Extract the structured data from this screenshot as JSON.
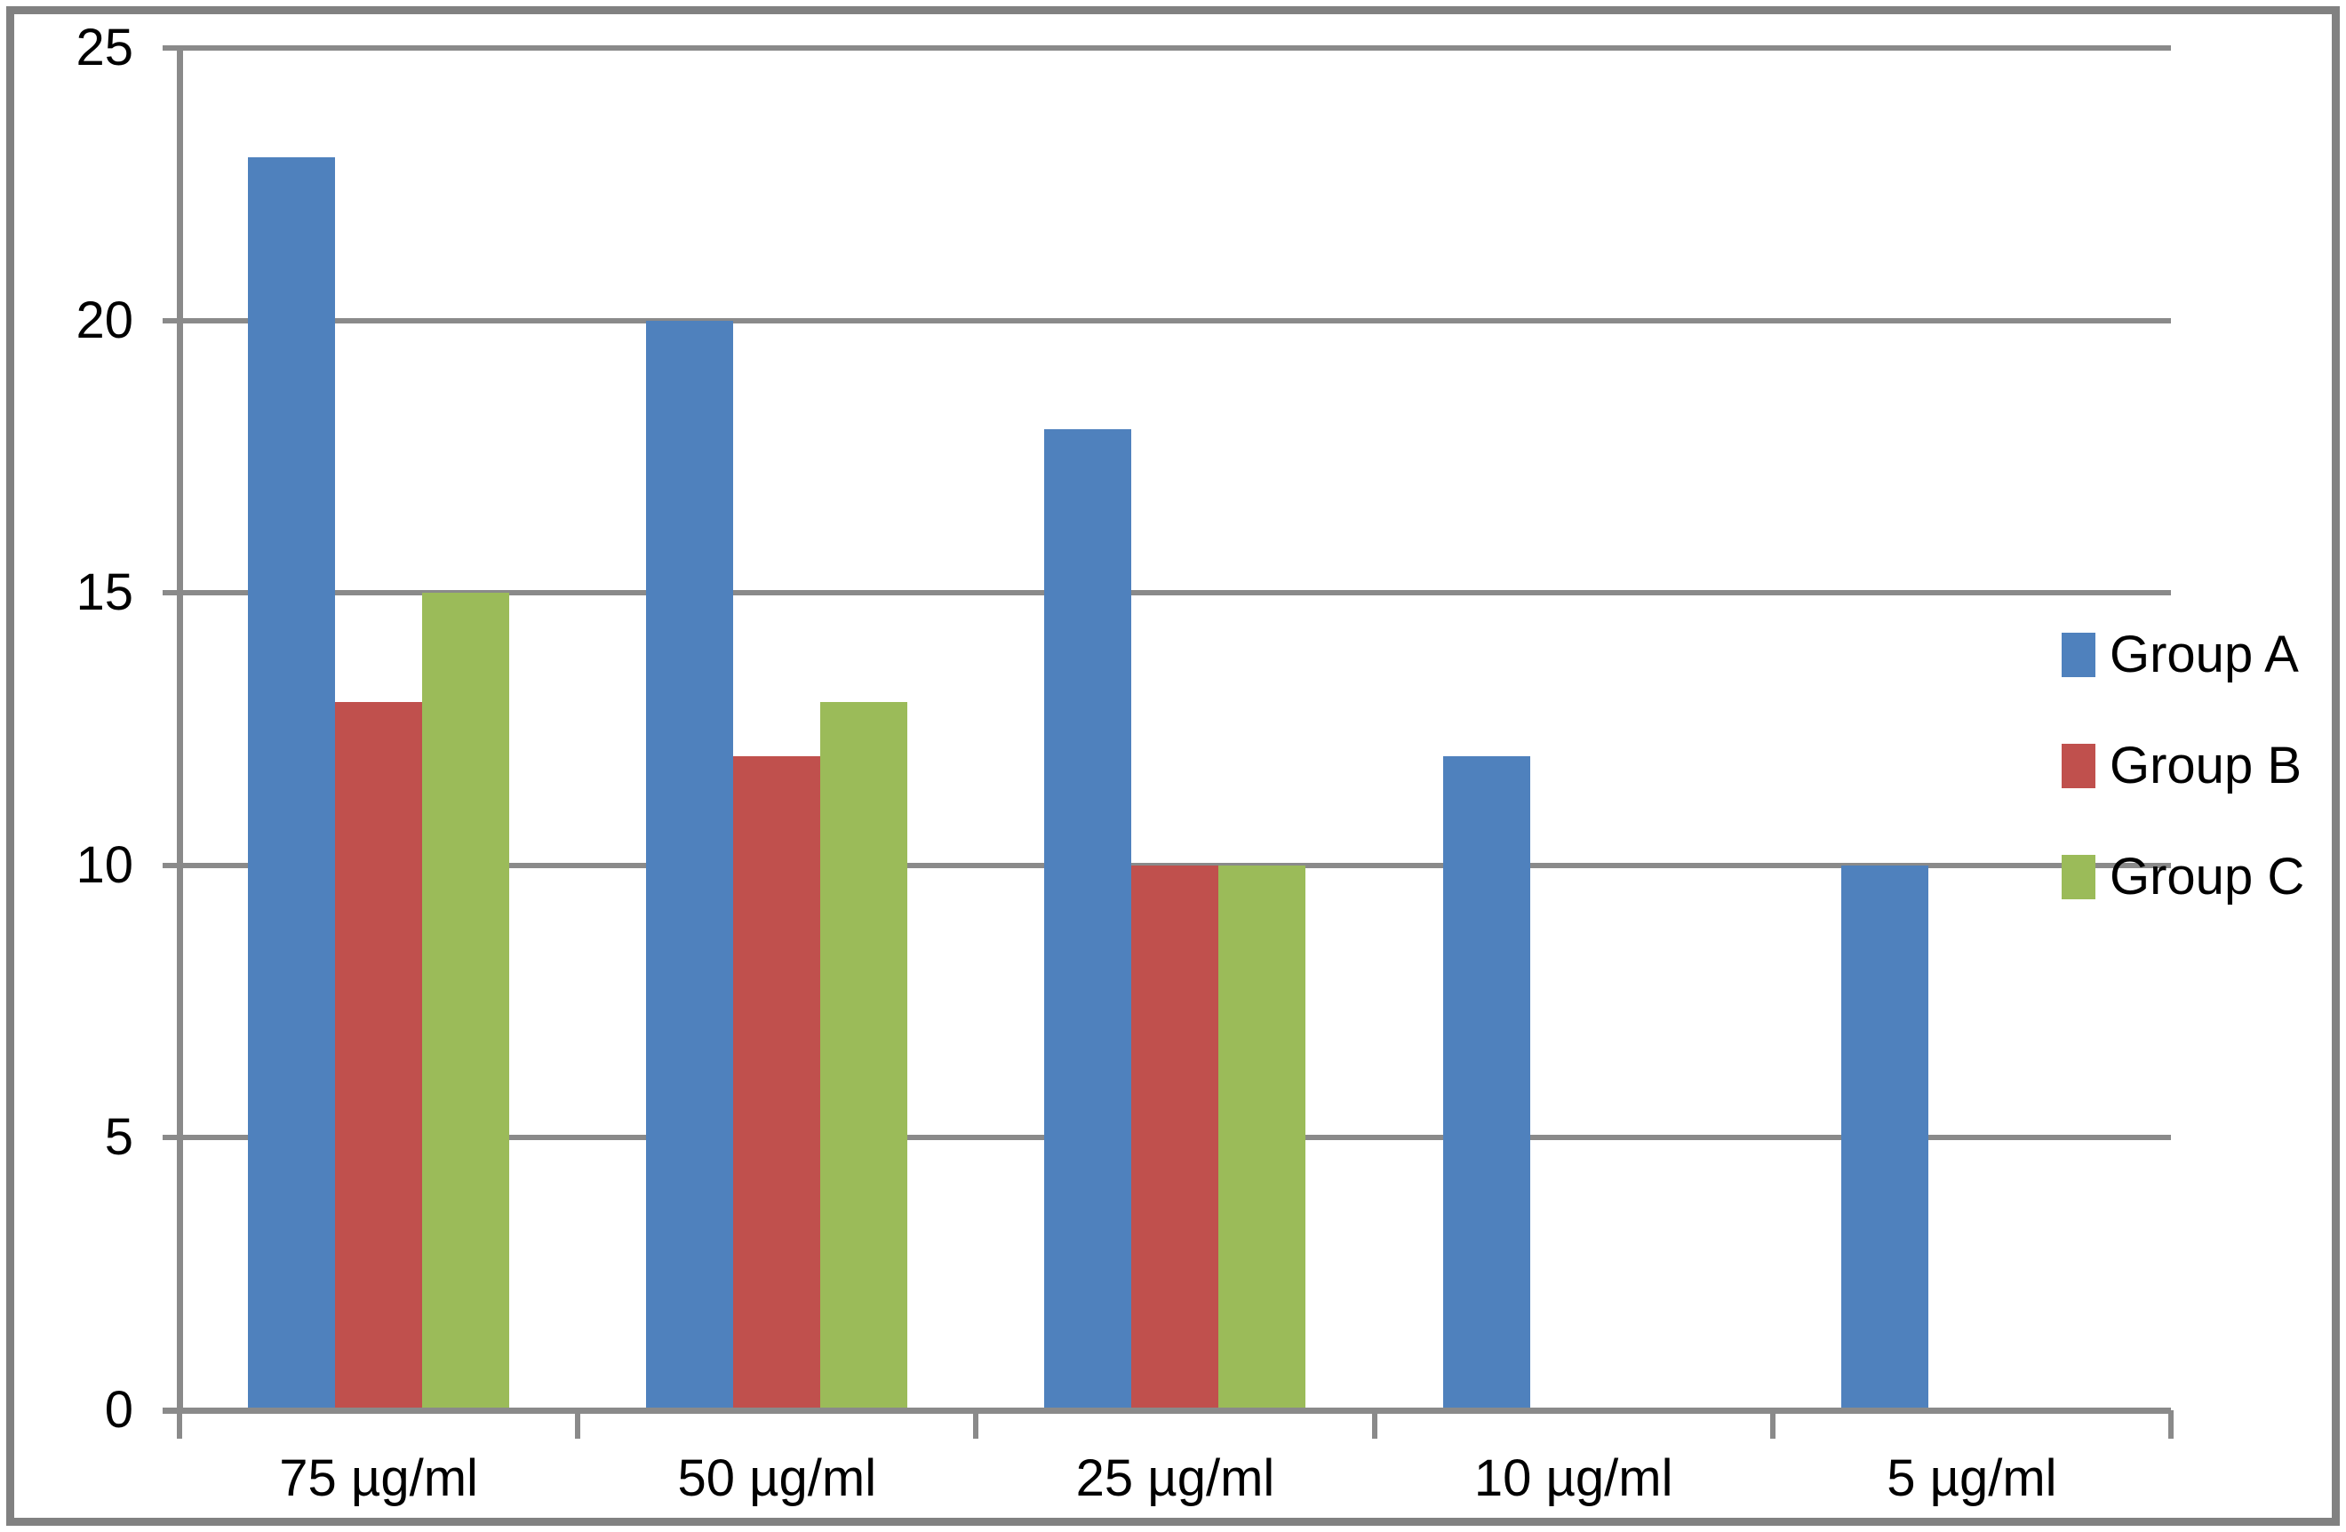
{
  "chart_data": {
    "type": "bar",
    "title": "",
    "xlabel": "",
    "ylabel": "",
    "categories": [
      "75 µg/ml",
      "50 µg/ml",
      "25 µg/ml",
      "10 µg/ml",
      "5 µg/ml"
    ],
    "series": [
      {
        "name": "Group A",
        "color": "#4F81BD",
        "values": [
          23,
          20,
          18,
          12,
          10
        ]
      },
      {
        "name": "Group B",
        "color": "#C0504D",
        "values": [
          13,
          12,
          10,
          0,
          0
        ]
      },
      {
        "name": "Group C",
        "color": "#9BBB59",
        "values": [
          15,
          13,
          10,
          0,
          0
        ]
      }
    ],
    "ylim": [
      0,
      25
    ],
    "yticks": [
      0,
      5,
      10,
      15,
      20,
      25
    ],
    "grid": true,
    "legend_position": "right",
    "legend_labels": [
      "Group A",
      "Group B",
      "Group C"
    ]
  },
  "style_colors": {
    "gridline": "#8A8A8A",
    "axis": "#8A8A8A",
    "tick": "#8A8A8A",
    "frame_border": "#818181",
    "background": "#FFFFFF",
    "label_text": "#000000"
  }
}
